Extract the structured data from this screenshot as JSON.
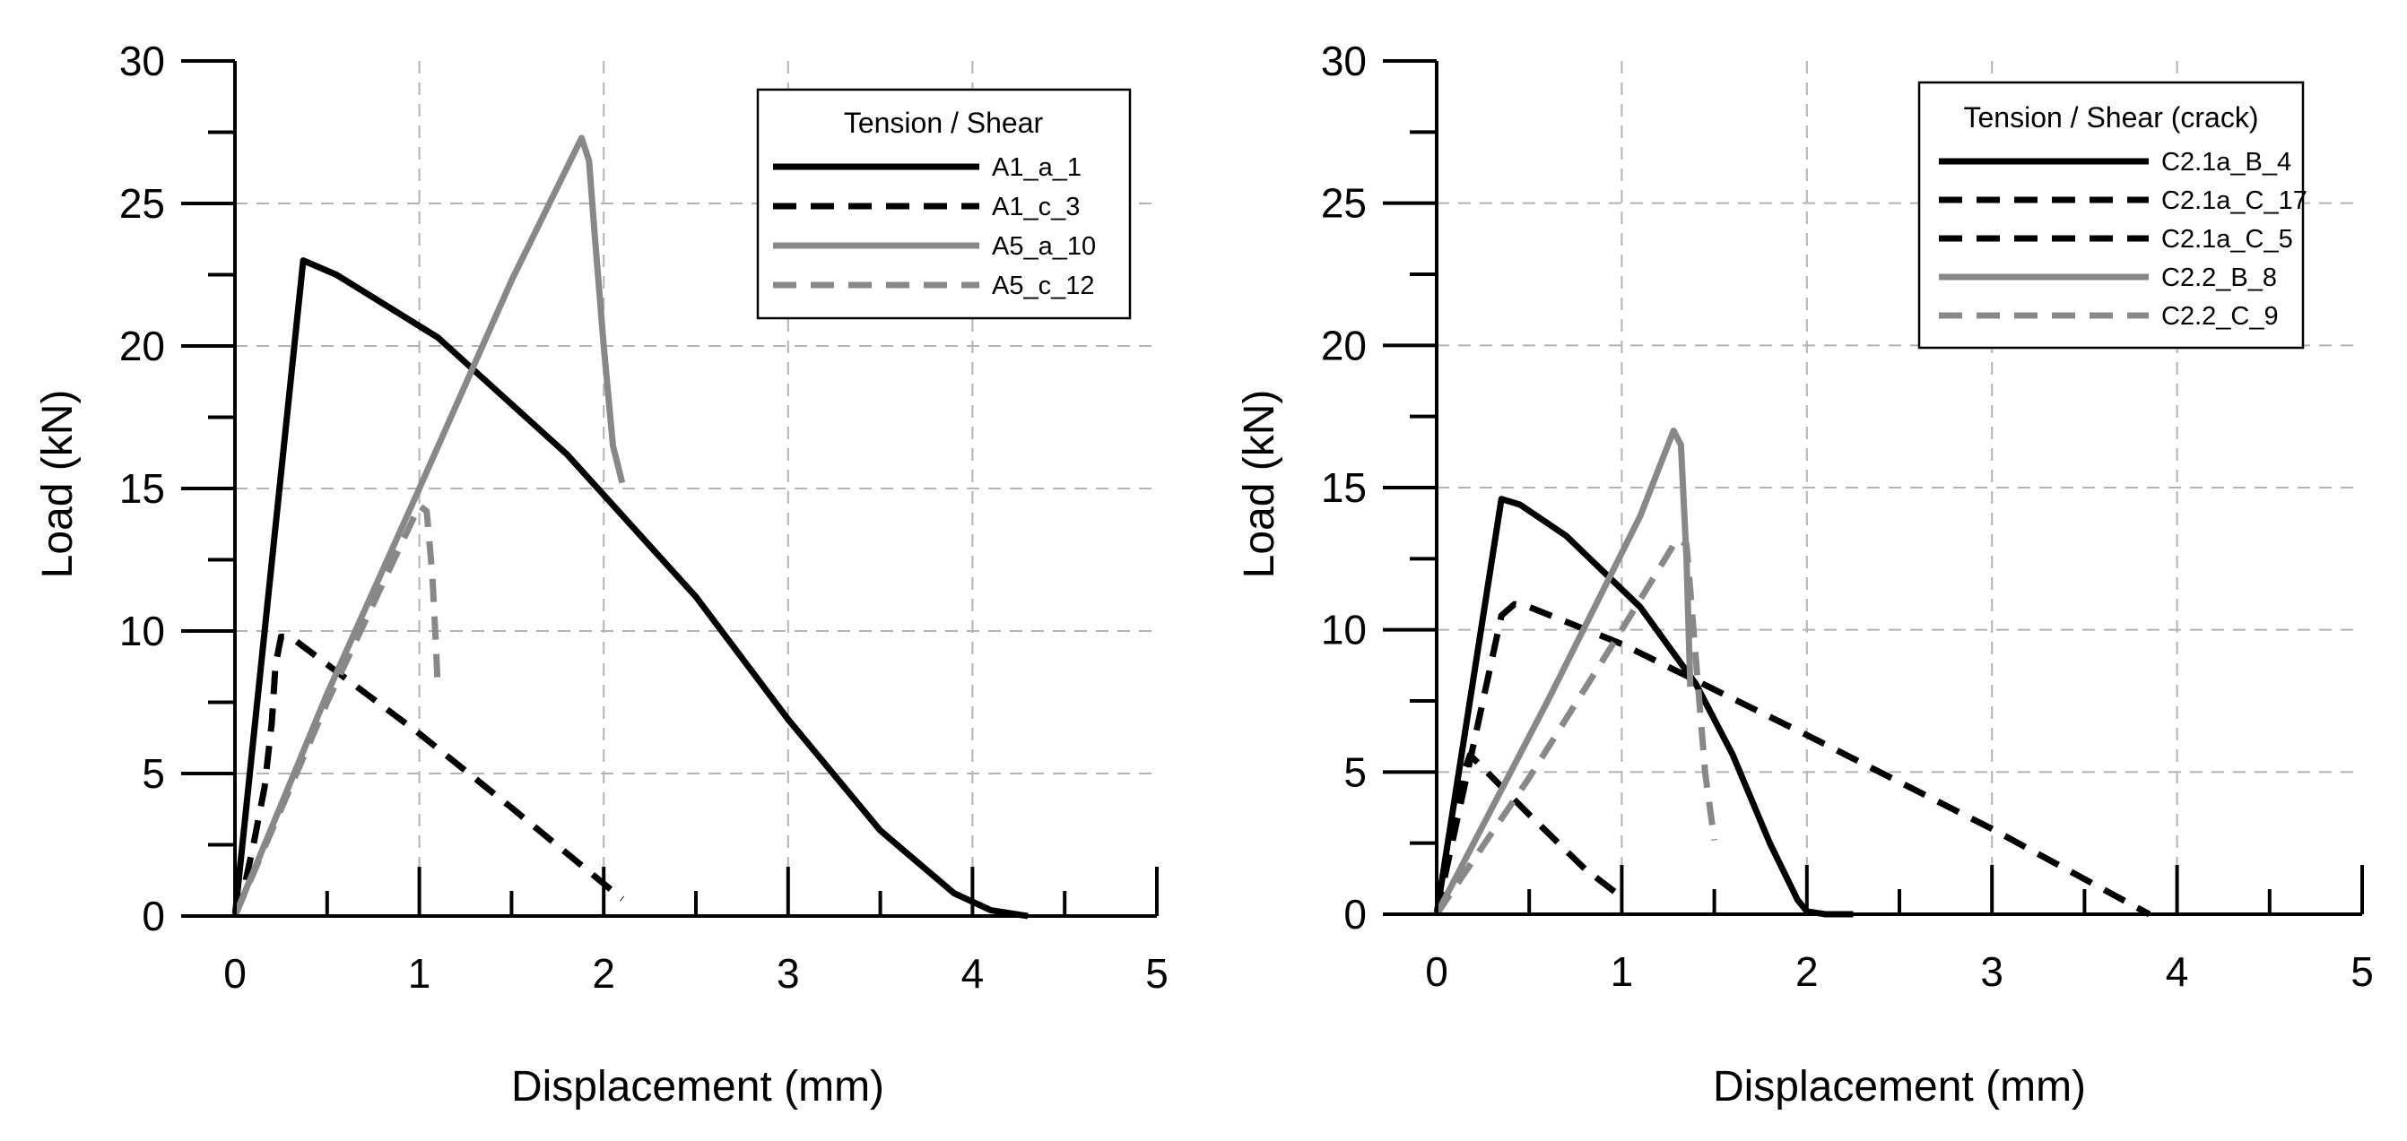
{
  "chart_data": [
    {
      "type": "line",
      "title": "",
      "xlabel": "Displacement (mm)",
      "ylabel": "Load (kN)",
      "xlim": [
        0,
        5
      ],
      "ylim": [
        0,
        30
      ],
      "xticks": [
        "0",
        "1",
        "2",
        "3",
        "4",
        "5"
      ],
      "yticks": [
        "0",
        "5",
        "10",
        "15",
        "20",
        "25",
        "30"
      ],
      "grid": true,
      "legend_position": "top-right",
      "legend_title": "Tension / Shear",
      "series": [
        {
          "name": "A1_a_1",
          "color": "#000000",
          "dash": "solid",
          "x": [
            0,
            0.37,
            0.55,
            1.1,
            1.8,
            2.5,
            3.0,
            3.5,
            3.9,
            4.1,
            4.3
          ],
          "y": [
            0,
            23,
            22.5,
            20.3,
            16.2,
            11.2,
            6.9,
            3.0,
            0.8,
            0.2,
            0
          ]
        },
        {
          "name": "A1_c_3",
          "color": "#000000",
          "dash": "dashed",
          "x": [
            0,
            0.05,
            0.1,
            0.16,
            0.2,
            0.22,
            0.25,
            0.3,
            1.0,
            1.5,
            2.1
          ],
          "y": [
            0,
            1.0,
            2.5,
            4.5,
            6.8,
            8.8,
            9.8,
            9.8,
            6.4,
            3.8,
            0.6
          ]
        },
        {
          "name": "A5_a_10",
          "color": "#888888",
          "dash": "solid",
          "x": [
            0,
            0.5,
            1.0,
            1.5,
            1.88,
            1.92,
            1.95,
            2.0,
            2.05,
            2.1
          ],
          "y": [
            0,
            7.8,
            15.0,
            22.3,
            27.3,
            26.5,
            24.0,
            20.0,
            16.5,
            15.2
          ]
        },
        {
          "name": "A5_c_12",
          "color": "#888888",
          "dash": "dashed",
          "x": [
            0,
            0.5,
            1.0,
            1.04,
            1.07,
            1.09,
            1.1
          ],
          "y": [
            0,
            7.5,
            14.4,
            14.2,
            12.0,
            9.5,
            8.0
          ]
        }
      ]
    },
    {
      "type": "line",
      "title": "",
      "xlabel": "Displacement (mm)",
      "ylabel": "Load (kN)",
      "xlim": [
        0,
        5
      ],
      "ylim": [
        0,
        30
      ],
      "xticks": [
        "0",
        "1",
        "2",
        "3",
        "4",
        "5"
      ],
      "yticks": [
        "0",
        "5",
        "10",
        "15",
        "20",
        "25",
        "30"
      ],
      "grid": true,
      "legend_position": "top-right",
      "legend_title": "Tension / Shear (crack)",
      "series": [
        {
          "name": "C2.1a_B_4",
          "color": "#000000",
          "dash": "solid",
          "x": [
            0,
            0.35,
            0.45,
            0.7,
            1.1,
            1.4,
            1.6,
            1.8,
            1.95,
            2.0,
            2.1,
            2.25
          ],
          "y": [
            0,
            14.6,
            14.4,
            13.3,
            10.8,
            8.1,
            5.6,
            2.5,
            0.5,
            0.1,
            0,
            0
          ]
        },
        {
          "name": "C2.1a_C_17",
          "color": "#000000",
          "dash": "dashed",
          "x": [
            0,
            0.2,
            0.35,
            0.42,
            0.5,
            1.0,
            2.0,
            3.0,
            3.85
          ],
          "y": [
            0,
            6.0,
            10.5,
            10.9,
            10.8,
            9.5,
            6.3,
            3.0,
            0
          ]
        },
        {
          "name": "C2.1a_C_5",
          "color": "#000000",
          "dash": "dashed",
          "x": [
            0,
            0.12,
            0.18,
            0.5,
            0.8,
            1.0
          ],
          "y": [
            0,
            4.5,
            5.6,
            3.5,
            1.6,
            0.6
          ]
        },
        {
          "name": "C2.2_B_8",
          "color": "#888888",
          "dash": "solid",
          "x": [
            0,
            0.6,
            1.1,
            1.28,
            1.32,
            1.35,
            1.37
          ],
          "y": [
            0,
            7.5,
            14.0,
            17.0,
            16.5,
            12.5,
            8.0
          ]
        },
        {
          "name": "C2.2_C_9",
          "color": "#888888",
          "dash": "dashed",
          "x": [
            0,
            0.5,
            1.0,
            1.3,
            1.35,
            1.4,
            1.45,
            1.5
          ],
          "y": [
            0,
            4.8,
            10.0,
            13.2,
            13.0,
            9.0,
            5.0,
            2.6
          ]
        }
      ]
    }
  ]
}
